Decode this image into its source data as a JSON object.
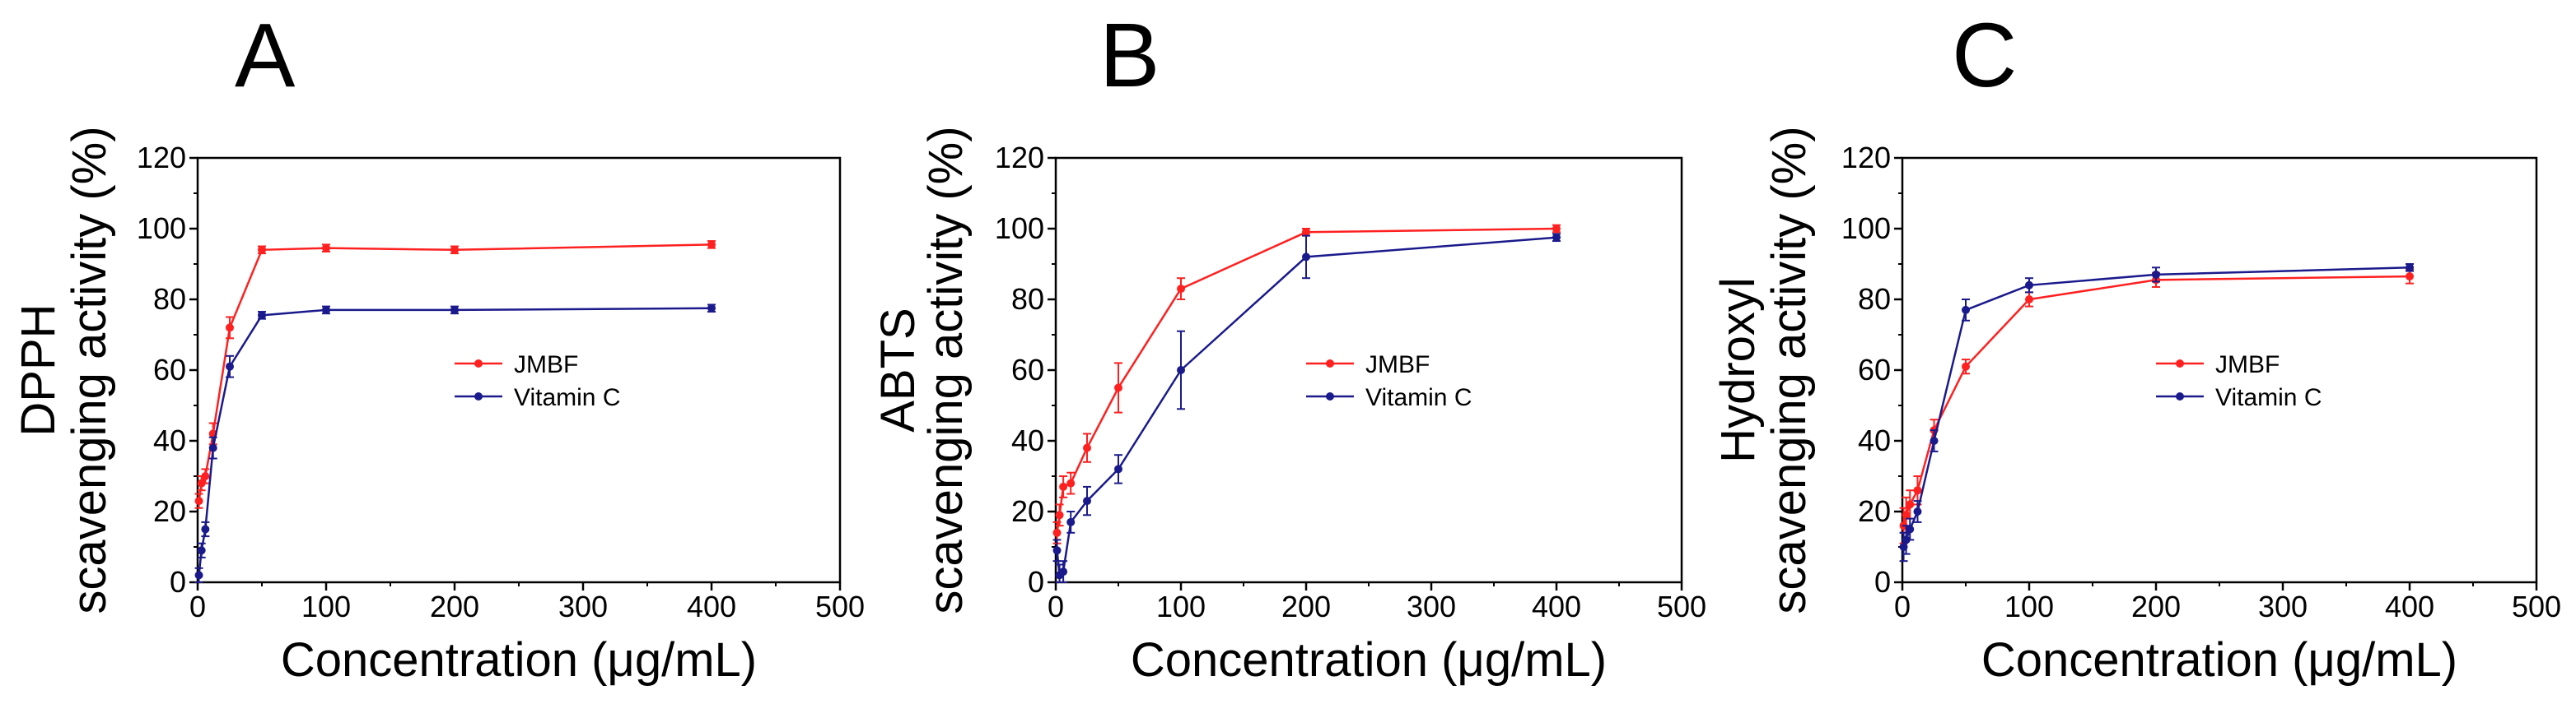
{
  "chart_data": [
    {
      "type": "line",
      "panel_label": "A",
      "xlabel": "Concentration (μg/mL)",
      "ylabel_lines": [
        "DPPH",
        "scavenging activity (%)"
      ],
      "xlim": [
        0,
        500
      ],
      "ylim": [
        0,
        120
      ],
      "xticks": [
        0,
        100,
        200,
        300,
        400,
        500
      ],
      "yticks": [
        0,
        20,
        40,
        60,
        80,
        100,
        120
      ],
      "grid": false,
      "legend_position": "center-right",
      "series": [
        {
          "name": "JMBF",
          "color": "#ff2020",
          "x": [
            1,
            3,
            6,
            12,
            25,
            50,
            100,
            200,
            400
          ],
          "y": [
            23,
            28,
            30,
            42,
            72,
            94,
            94.5,
            94,
            95.5
          ],
          "err": [
            2,
            2,
            2,
            3,
            3,
            1,
            1,
            1,
            1
          ]
        },
        {
          "name": "Vitamin C",
          "color": "#1a1a8c",
          "x": [
            1,
            3,
            6,
            12,
            25,
            50,
            100,
            200,
            400
          ],
          "y": [
            2,
            9,
            15,
            38,
            61,
            75.5,
            77,
            77,
            77.5
          ],
          "err": [
            2,
            2,
            2,
            3,
            3,
            1,
            1,
            1,
            1
          ]
        }
      ]
    },
    {
      "type": "line",
      "panel_label": "B",
      "xlabel": "Concentration (μg/mL)",
      "ylabel_lines": [
        "ABTS",
        "scavenging activity (%)"
      ],
      "xlim": [
        0,
        500
      ],
      "ylim": [
        0,
        120
      ],
      "xticks": [
        0,
        100,
        200,
        300,
        400,
        500
      ],
      "yticks": [
        0,
        20,
        40,
        60,
        80,
        100,
        120
      ],
      "grid": false,
      "legend_position": "center-right",
      "series": [
        {
          "name": "JMBF",
          "color": "#ff2020",
          "x": [
            1,
            3,
            6,
            12,
            25,
            50,
            100,
            200,
            400
          ],
          "y": [
            14,
            19,
            27,
            28,
            38,
            55,
            83,
            99,
            100
          ],
          "err": [
            3,
            3,
            3,
            3,
            4,
            7,
            3,
            1,
            1
          ]
        },
        {
          "name": "Vitamin C",
          "color": "#1a1a8c",
          "x": [
            1,
            3,
            6,
            12,
            25,
            50,
            100,
            200,
            400
          ],
          "y": [
            9,
            2,
            3,
            17,
            23,
            32,
            60,
            92,
            97.5
          ],
          "err": [
            3,
            3,
            3,
            3,
            4,
            4,
            11,
            6,
            1
          ]
        }
      ]
    },
    {
      "type": "line",
      "panel_label": "C",
      "xlabel": "Concentration (μg/mL)",
      "ylabel_lines": [
        "Hydroxyl",
        "scavenging activity (%)"
      ],
      "xlim": [
        0,
        500
      ],
      "ylim": [
        0,
        120
      ],
      "xticks": [
        0,
        100,
        200,
        300,
        400,
        500
      ],
      "yticks": [
        0,
        20,
        40,
        60,
        80,
        100,
        120
      ],
      "grid": false,
      "legend_position": "center-right",
      "series": [
        {
          "name": "JMBF",
          "color": "#ff2020",
          "x": [
            1,
            3,
            6,
            12,
            25,
            50,
            100,
            200,
            400
          ],
          "y": [
            16,
            19,
            22,
            26,
            43,
            61,
            80,
            85.5,
            86.5
          ],
          "err": [
            5,
            5,
            4,
            4,
            3,
            2,
            2,
            2,
            2
          ]
        },
        {
          "name": "Vitamin C",
          "color": "#1a1a8c",
          "x": [
            1,
            3,
            6,
            12,
            25,
            50,
            100,
            200,
            400
          ],
          "y": [
            10,
            12,
            15,
            20,
            40,
            77,
            84,
            87,
            89
          ],
          "err": [
            4,
            4,
            3,
            3,
            3,
            3,
            2,
            2,
            1
          ]
        }
      ]
    }
  ]
}
